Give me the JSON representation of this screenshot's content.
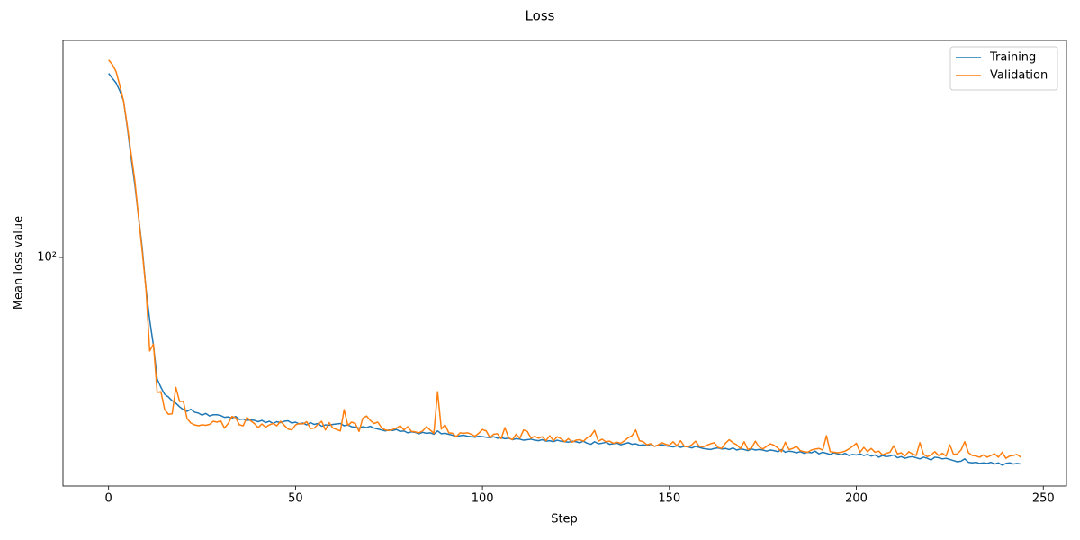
{
  "chart_data": {
    "type": "line",
    "title": "Loss",
    "x_label": "Step",
    "y_label": "Mean loss value",
    "x": [
      0,
      1,
      2,
      3,
      4,
      5,
      6,
      7,
      8,
      9,
      10,
      11,
      12,
      13,
      14,
      15,
      16,
      17,
      18,
      19,
      20,
      21,
      22,
      23,
      24,
      25,
      26,
      27,
      28,
      29,
      30,
      31,
      32,
      33,
      34,
      35,
      36,
      37,
      38,
      39,
      40,
      41,
      42,
      43,
      44,
      45,
      46,
      47,
      48,
      49,
      50,
      51,
      52,
      53,
      54,
      55,
      56,
      57,
      58,
      59,
      60,
      61,
      62,
      63,
      64,
      65,
      66,
      67,
      68,
      69,
      70,
      71,
      72,
      73,
      74,
      75,
      76,
      77,
      78,
      79,
      80,
      81,
      82,
      83,
      84,
      85,
      86,
      87,
      88,
      89,
      90,
      91,
      92,
      93,
      94,
      95,
      96,
      97,
      98,
      99,
      100,
      101,
      102,
      103,
      104,
      105,
      106,
      107,
      108,
      109,
      110,
      111,
      112,
      113,
      114,
      115,
      116,
      117,
      118,
      119,
      120,
      121,
      122,
      123,
      124,
      125,
      126,
      127,
      128,
      129,
      130,
      131,
      132,
      133,
      134,
      135,
      136,
      137,
      138,
      139,
      140,
      141,
      142,
      143,
      144,
      145,
      146,
      147,
      148,
      149,
      150,
      151,
      152,
      153,
      154,
      155,
      156,
      157,
      158,
      159,
      160,
      161,
      162,
      163,
      164,
      165,
      166,
      167,
      168,
      169,
      170,
      171,
      172,
      173,
      174,
      175,
      176,
      177,
      178,
      179,
      180,
      181,
      182,
      183,
      184,
      185,
      186,
      187,
      188,
      189,
      190,
      191,
      192,
      193,
      194,
      195,
      196,
      197,
      198,
      199,
      200,
      201,
      202,
      203,
      204,
      205,
      206,
      207,
      208,
      209,
      210,
      211,
      212,
      213,
      214,
      215,
      216,
      217,
      218,
      219,
      220,
      221,
      222,
      223,
      224,
      225,
      226,
      227,
      228,
      229,
      230,
      231,
      232,
      233,
      234,
      235,
      236,
      237,
      238,
      239,
      240,
      241,
      242,
      243,
      244
    ],
    "series": [
      {
        "name": "Training",
        "color": "#1f77b4",
        "values": [
          324,
          314,
          305,
          290,
          272,
          230,
          190,
          160,
          130,
          106,
          82,
          67,
          57,
          46,
          43.6,
          41.7,
          41.0,
          40.0,
          39.4,
          38.5,
          37.8,
          37.4,
          37.9,
          37.2,
          37.0,
          36.5,
          36.9,
          36.3,
          36.6,
          36.6,
          36.4,
          36.0,
          36.1,
          35.8,
          36.2,
          35.5,
          35.6,
          35.3,
          35.4,
          35.3,
          35.0,
          35.3,
          34.8,
          35.1,
          34.6,
          35.0,
          34.8,
          35.1,
          35.2,
          34.7,
          34.9,
          34.5,
          34.7,
          34.3,
          34.8,
          34.4,
          34.6,
          34.0,
          34.3,
          34.2,
          34.4,
          34.5,
          34.6,
          34.1,
          34.3,
          33.9,
          33.8,
          33.6,
          33.9,
          33.7,
          34.0,
          33.6,
          33.4,
          33.2,
          33.0,
          33.2,
          33.1,
          33.3,
          32.9,
          33.0,
          32.6,
          32.8,
          32.7,
          32.4,
          32.7,
          32.5,
          32.6,
          32.3,
          33.0,
          32.4,
          32.5,
          32.3,
          32.1,
          31.8,
          32.0,
          32.1,
          31.9,
          31.8,
          31.7,
          31.9,
          31.8,
          31.7,
          31.6,
          31.8,
          31.5,
          31.6,
          31.4,
          31.5,
          31.2,
          31.4,
          31.3,
          31.1,
          31.2,
          31.3,
          31.1,
          31.0,
          31.2,
          30.9,
          31.0,
          30.8,
          31.1,
          30.9,
          30.8,
          30.7,
          30.9,
          30.8,
          30.6,
          30.9,
          30.5,
          30.3,
          30.8,
          30.4,
          30.5,
          30.7,
          30.3,
          30.4,
          30.5,
          30.2,
          30.4,
          30.6,
          30.3,
          30.4,
          30.1,
          30.2,
          30.0,
          30.3,
          29.9,
          30.1,
          30.2,
          30.0,
          29.9,
          29.8,
          30.0,
          29.7,
          29.9,
          29.8,
          29.6,
          29.9,
          29.7,
          29.5,
          29.4,
          29.3,
          29.5,
          29.6,
          29.4,
          29.5,
          29.3,
          29.6,
          29.2,
          29.4,
          29.3,
          29.1,
          29.4,
          29.2,
          29.3,
          29.2,
          29.0,
          29.2,
          29.1,
          28.9,
          29.3,
          28.8,
          29.0,
          28.9,
          28.7,
          28.9,
          28.6,
          28.8,
          28.7,
          29.0,
          28.5,
          28.8,
          28.6,
          28.4,
          28.7,
          28.5,
          28.3,
          28.6,
          28.2,
          28.4,
          28.3,
          28.5,
          28.2,
          28.4,
          28.1,
          28.3,
          27.9,
          28.2,
          28.0,
          28.1,
          28.3,
          27.8,
          28.0,
          27.7,
          27.9,
          28.0,
          27.8,
          27.6,
          27.9,
          27.7,
          27.4,
          27.9,
          27.8,
          27.6,
          27.7,
          27.5,
          27.3,
          27.1,
          27.2,
          27.6,
          27.0,
          26.9,
          27.0,
          26.8,
          26.9,
          26.8,
          27.0,
          26.7,
          26.9,
          26.5,
          26.8,
          26.9,
          26.7,
          26.8,
          26.7
        ]
      },
      {
        "name": "Validation",
        "color": "#ff7f0e",
        "values": [
          353,
          343,
          328,
          300,
          272,
          232,
          195,
          164,
          130,
          104,
          82,
          55,
          57.5,
          42.2,
          42.4,
          37.8,
          36.7,
          36.8,
          43.6,
          39.8,
          39.9,
          35.7,
          34.7,
          34.3,
          34.1,
          34.3,
          34.2,
          34.4,
          35.1,
          34.9,
          35.2,
          33.6,
          34.6,
          36.2,
          35.9,
          34.3,
          34.1,
          36.0,
          35.2,
          34.6,
          33.7,
          34.5,
          33.8,
          34.3,
          34.6,
          34.1,
          35.1,
          34.2,
          33.4,
          33.2,
          34.3,
          34.6,
          34.5,
          35.0,
          33.5,
          33.6,
          34.4,
          35.1,
          33.2,
          34.8,
          33.6,
          33.3,
          33.0,
          37.8,
          34.2,
          34.9,
          34.6,
          32.9,
          35.8,
          36.3,
          35.3,
          34.6,
          34.9,
          33.7,
          33.2,
          33.1,
          33.3,
          33.6,
          34.1,
          33.2,
          33.9,
          32.9,
          32.8,
          32.6,
          33.0,
          33.9,
          33.2,
          32.5,
          42.4,
          33.4,
          34.3,
          32.6,
          32.5,
          31.8,
          32.6,
          32.5,
          32.6,
          32.3,
          31.9,
          32.5,
          33.3,
          33.0,
          31.6,
          32.3,
          32.4,
          31.4,
          33.7,
          31.6,
          31.2,
          32.3,
          31.5,
          33.2,
          32.9,
          31.5,
          31.9,
          31.5,
          31.8,
          31.0,
          32.0,
          31.0,
          31.8,
          31.4,
          30.8,
          31.4,
          30.7,
          31.1,
          31.2,
          30.9,
          31.6,
          32.0,
          33.1,
          30.9,
          31.3,
          30.8,
          30.9,
          30.5,
          30.7,
          30.5,
          31.0,
          31.6,
          32.0,
          33.2,
          31.0,
          30.8,
          30.2,
          30.4,
          29.9,
          30.2,
          30.6,
          30.3,
          30.1,
          30.8,
          30.0,
          31.0,
          29.9,
          29.8,
          30.2,
          30.9,
          29.9,
          29.8,
          30.1,
          30.4,
          30.6,
          29.7,
          29.5,
          30.5,
          31.2,
          30.6,
          30.2,
          29.5,
          30.8,
          29.3,
          29.6,
          30.9,
          29.8,
          29.4,
          29.9,
          30.4,
          30.1,
          29.6,
          28.9,
          30.7,
          29.3,
          29.5,
          29.9,
          29.1,
          28.9,
          28.8,
          29.2,
          29.4,
          29.5,
          29.2,
          32.0,
          28.9,
          28.8,
          28.7,
          28.8,
          29.0,
          29.4,
          29.9,
          30.5,
          28.8,
          29.7,
          28.9,
          29.5,
          28.8,
          29.0,
          28.3,
          28.6,
          28.8,
          30.0,
          28.5,
          28.7,
          28.1,
          28.9,
          28.5,
          28.2,
          30.6,
          28.4,
          28.0,
          28.3,
          28.9,
          28.2,
          28.6,
          28.1,
          30.2,
          28.4,
          28.5,
          29.2,
          30.8,
          28.7,
          28.2,
          28.1,
          27.9,
          28.3,
          27.9,
          28.2,
          28.5,
          27.9,
          28.8,
          27.7,
          28.1,
          28.2,
          28.4,
          27.9
        ]
      }
    ],
    "xlim": [
      -12.2,
      256.2
    ],
    "xticks": [
      0,
      50,
      100,
      150,
      200,
      250
    ],
    "ylim": [
      23.2,
      400
    ],
    "yticks": [
      {
        "value": 100,
        "label": "10²"
      }
    ],
    "y_scale": "log",
    "legend": "upper right"
  }
}
